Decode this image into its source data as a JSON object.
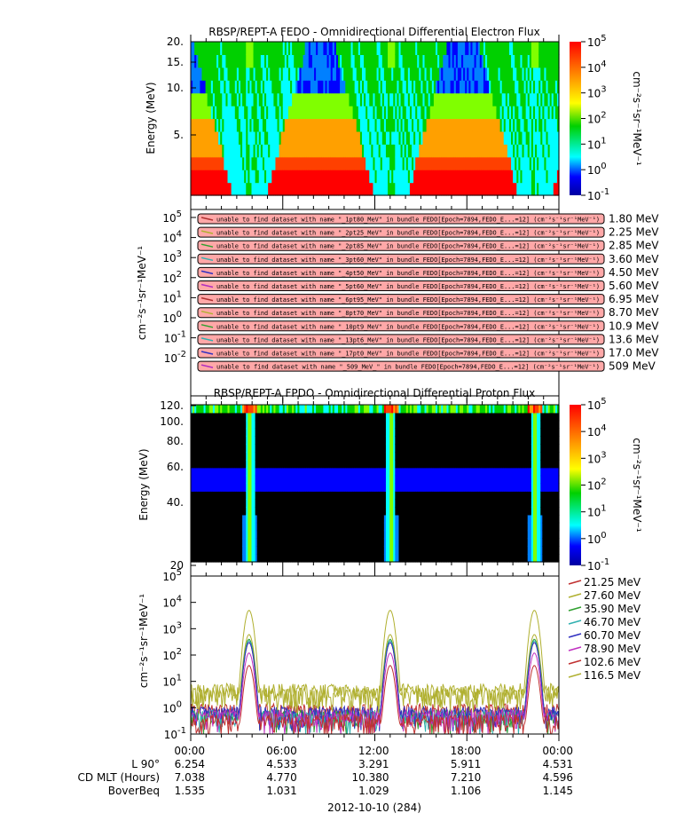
{
  "chart_data": [
    {
      "type": "heatmap",
      "title": "RBSP/REPT-A  FEDO - Omnidirectional Differential Electron Flux",
      "ylabel": "Energy (MeV)",
      "yticks": [
        "20.",
        "15.",
        "10.",
        "5."
      ],
      "zlabel": "cm^-2s^-1sr^-1MeV^-1",
      "zticks": [
        "10^5",
        "10^4",
        "10^3",
        "10^2",
        "10^1",
        "10^0",
        "10^-1"
      ],
      "zlim": [
        0.1,
        100000
      ],
      "xlim_hours": [
        0,
        24
      ]
    },
    {
      "type": "line",
      "ylabel": "cm^-2s^-1sr^-1MeV^-1",
      "yticks": [
        "10^5",
        "10^4",
        "10^3",
        "10^2",
        "10^1",
        "10^0",
        "10^-1",
        "10^-2"
      ],
      "errors": [
        "unable to find dataset with name \"_1pt80_MeV\" in bundle FEDO[Epoch=7894,FEDO_E...=12] (cm⁻²s⁻¹sr⁻¹MeV⁻¹)",
        "unable to find dataset with name \"_2pt25_MeV\" in bundle FEDO[Epoch=7894,FEDO_E...=12] (cm⁻²s⁻¹sr⁻¹MeV⁻¹)",
        "unable to find dataset with name \"_2pt85_MeV\" in bundle FEDO[Epoch=7894,FEDO_E...=12] (cm⁻²s⁻¹sr⁻¹MeV⁻¹)",
        "unable to find dataset with name \"_3pt60_MeV\" in bundle FEDO[Epoch=7894,FEDO_E...=12] (cm⁻²s⁻¹sr⁻¹MeV⁻¹)",
        "unable to find dataset with name \"_4pt50_MeV\" in bundle FEDO[Epoch=7894,FEDO_E...=12] (cm⁻²s⁻¹sr⁻¹MeV⁻¹)",
        "unable to find dataset with name \"_5pt60_MeV\" in bundle FEDO[Epoch=7894,FEDO_E...=12] (cm⁻²s⁻¹sr⁻¹MeV⁻¹)",
        "unable to find dataset with name \"_6pt95_MeV\" in bundle FEDO[Epoch=7894,FEDO_E...=12] (cm⁻²s⁻¹sr⁻¹MeV⁻¹)",
        "unable to find dataset with name \"_8pt70_MeV\" in bundle FEDO[Epoch=7894,FEDO_E...=12] (cm⁻²s⁻¹sr⁻¹MeV⁻¹)",
        "unable to find dataset with name \"_10pt9_MeV\" in bundle FEDO[Epoch=7894,FEDO_E...=12] (cm⁻²s⁻¹sr⁻¹MeV⁻¹)",
        "unable to find dataset with name \"_13pt6_MeV\" in bundle FEDO[Epoch=7894,FEDO_E...=12] (cm⁻²s⁻¹sr⁻¹MeV⁻¹)",
        "unable to find dataset with name \"_17pt0_MeV\" in bundle FEDO[Epoch=7894,FEDO_E...=12] (cm⁻²s⁻¹sr⁻¹MeV⁻¹)",
        "unable to find dataset with name \"_509_MeV_\" in bundle FEDO[Epoch=7894,FEDO_E...=12] (cm⁻²s⁻¹sr⁻¹MeV⁻¹)"
      ],
      "legend": [
        "1.80 MeV",
        "2.25 MeV",
        "2.85 MeV",
        "3.60 MeV",
        "4.50 MeV",
        "5.60 MeV",
        "6.95 MeV",
        "8.70 MeV",
        "10.9 MeV",
        "13.6 MeV",
        "17.0 MeV",
        "509 MeV"
      ],
      "colors": [
        "#b03030",
        "#b0b030",
        "#30a030",
        "#30b0b0",
        "#3030c0",
        "#b030c0",
        "#b03030",
        "#b0b030",
        "#30a030",
        "#30b0b0",
        "#3030c0",
        "#b030c0"
      ]
    },
    {
      "type": "heatmap",
      "title": "RBSP/REPT-A  FPDO - Omnidirectional Differential Proton Flux",
      "ylabel": "Energy (MeV)",
      "yticks": [
        "120.",
        "100.",
        "80.",
        "60.",
        "40.",
        "20"
      ],
      "zlabel": "cm^-2s^-1sr^-1MeV^-1",
      "zticks": [
        "10^5",
        "10^4",
        "10^3",
        "10^2",
        "10^1",
        "10^0",
        "10^-1"
      ],
      "zlim": [
        0.1,
        100000
      ]
    },
    {
      "type": "line",
      "ylabel": "cm^-2s^-1sr^-1MeV^-1",
      "ylim": [
        0.1,
        100000
      ],
      "yticks": [
        "10^5",
        "10^4",
        "10^3",
        "10^2",
        "10^1",
        "10^0",
        "10^-1"
      ],
      "xlim_hours": [
        0,
        24
      ],
      "peak_hours": [
        3.8,
        13.0,
        22.4
      ],
      "series": [
        {
          "name": "21.25 MeV",
          "color": "#c03030",
          "peak": 300,
          "base": 0.5
        },
        {
          "name": "27.60 MeV",
          "color": "#b0b030",
          "peak": 600,
          "base": 3
        },
        {
          "name": "35.90 MeV",
          "color": "#30a030",
          "peak": 400,
          "base": 0.3
        },
        {
          "name": "46.70 MeV",
          "color": "#30b0b0",
          "peak": 350,
          "base": 0.3
        },
        {
          "name": "60.70 MeV",
          "color": "#3030c0",
          "peak": 300,
          "base": 0.4
        },
        {
          "name": "78.90 MeV",
          "color": "#c030c0",
          "peak": 120,
          "base": 0.3
        },
        {
          "name": "102.6 MeV",
          "color": "#c03030",
          "peak": 40,
          "base": 0.2
        },
        {
          "name": "116.5 MeV",
          "color": "#b0b030",
          "peak": 5000,
          "base": 2
        }
      ]
    }
  ],
  "xaxis": {
    "ticks": [
      "00:00",
      "06:00",
      "12:00",
      "18:00",
      "00:00"
    ],
    "date": "2012-10-10 (284)"
  },
  "ephemeris": {
    "labels": [
      "L 90°",
      "CD MLT (Hours)",
      "BoverBeq"
    ],
    "rows": [
      [
        "6.254",
        "4.533",
        "3.291",
        "5.911",
        "4.531"
      ],
      [
        "7.038",
        "4.770",
        "10.380",
        "7.210",
        "4.596"
      ],
      [
        "1.535",
        "1.031",
        "1.029",
        "1.106",
        "1.145"
      ]
    ]
  }
}
